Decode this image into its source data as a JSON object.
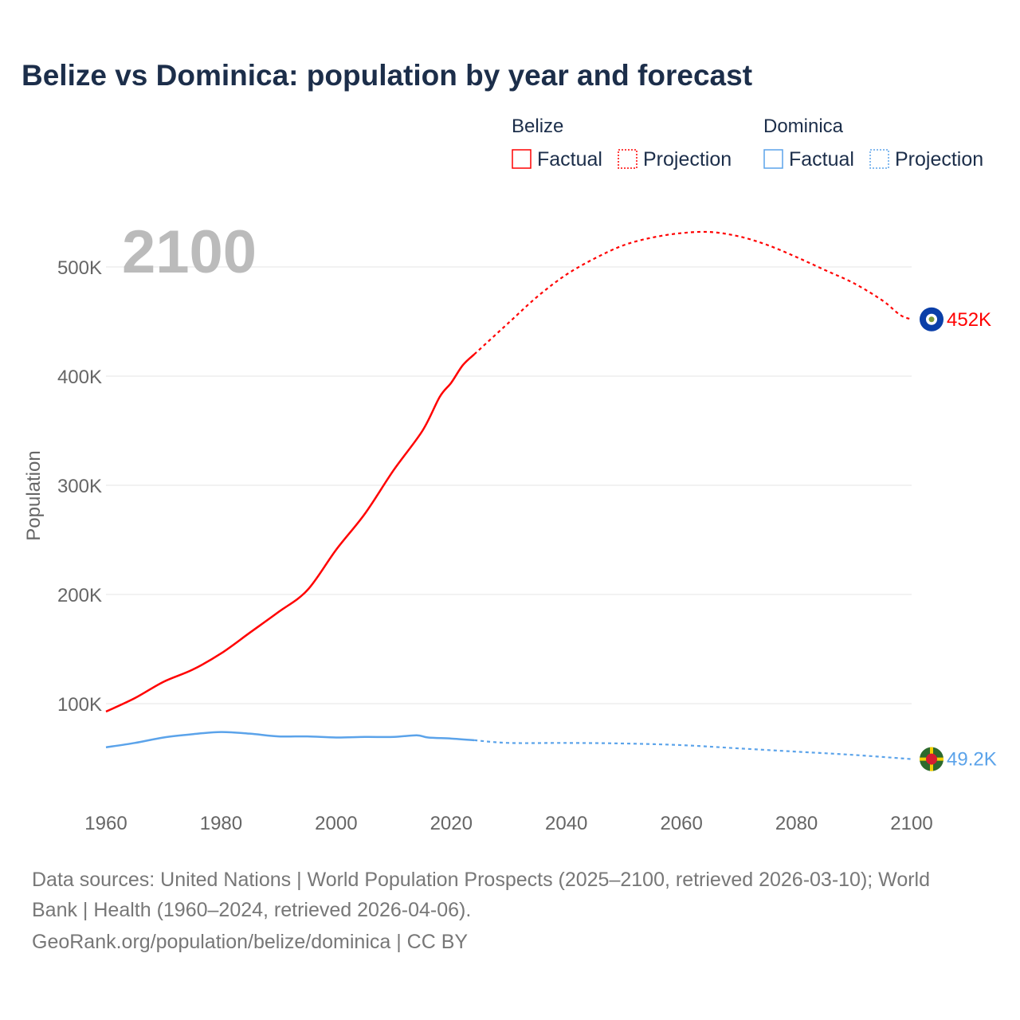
{
  "title": "Belize vs Dominica: population by year and forecast",
  "year_label": "2100",
  "footer": {
    "line1": "Data sources: United Nations | World Population Prospects (2025–2100, retrieved 2026-03-10); World",
    "line2": "Bank | Health (1960–2024, retrieved 2026-04-06).",
    "line3": "GeoRank.org/population/belize/dominica | CC BY"
  },
  "legend": {
    "groups": [
      {
        "name": "Belize",
        "color": "#ff0000",
        "factual": "Factual",
        "projection": "Projection"
      },
      {
        "name": "Dominica",
        "color": "#5ba3ea",
        "factual": "Factual",
        "projection": "Projection"
      }
    ]
  },
  "chart_data": {
    "type": "line",
    "title": "Belize vs Dominica: population by year and forecast",
    "ylabel": "Population",
    "xlabel": "",
    "xlim": [
      1960,
      2100
    ],
    "ylim": [
      0,
      550000
    ],
    "xticks": [
      1960,
      1980,
      2000,
      2020,
      2040,
      2060,
      2080,
      2100
    ],
    "xtick_labels": [
      "1960",
      "1980",
      "2000",
      "2020",
      "2040",
      "2060",
      "2080",
      "2100"
    ],
    "yticks": [
      100000,
      200000,
      300000,
      400000,
      500000
    ],
    "ytick_labels": [
      "100K",
      "200K",
      "300K",
      "400K",
      "500K"
    ],
    "grid": true,
    "series": [
      {
        "name": "Belize",
        "color": "#ff0000",
        "end_label": "452K",
        "factual": [
          [
            1960,
            92700
          ],
          [
            1965,
            105000
          ],
          [
            1970,
            120000
          ],
          [
            1975,
            131000
          ],
          [
            1980,
            146000
          ],
          [
            1985,
            165000
          ],
          [
            1990,
            184000
          ],
          [
            1995,
            204000
          ],
          [
            2000,
            241000
          ],
          [
            2005,
            274000
          ],
          [
            2010,
            314000
          ],
          [
            2015,
            350000
          ],
          [
            2018,
            381000
          ],
          [
            2020,
            394000
          ],
          [
            2022,
            410000
          ],
          [
            2024,
            420000
          ]
        ],
        "projection": [
          [
            2024,
            420000
          ],
          [
            2030,
            449000
          ],
          [
            2035,
            473000
          ],
          [
            2040,
            493000
          ],
          [
            2045,
            508000
          ],
          [
            2050,
            520000
          ],
          [
            2055,
            527000
          ],
          [
            2060,
            531000
          ],
          [
            2065,
            532000
          ],
          [
            2070,
            528000
          ],
          [
            2075,
            520000
          ],
          [
            2080,
            509000
          ],
          [
            2085,
            497000
          ],
          [
            2090,
            485000
          ],
          [
            2095,
            469000
          ],
          [
            2098,
            456000
          ],
          [
            2100,
            452000
          ]
        ]
      },
      {
        "name": "Dominica",
        "color": "#5ba3ea",
        "end_label": "49.2K",
        "factual": [
          [
            1960,
            60000
          ],
          [
            1965,
            64000
          ],
          [
            1970,
            69000
          ],
          [
            1975,
            72000
          ],
          [
            1980,
            74000
          ],
          [
            1985,
            72500
          ],
          [
            1990,
            70000
          ],
          [
            1995,
            70000
          ],
          [
            2000,
            69000
          ],
          [
            2005,
            69500
          ],
          [
            2010,
            69500
          ],
          [
            2014,
            71000
          ],
          [
            2016,
            69000
          ],
          [
            2020,
            68000
          ],
          [
            2024,
            66500
          ]
        ],
        "projection": [
          [
            2024,
            66500
          ],
          [
            2030,
            64000
          ],
          [
            2040,
            64000
          ],
          [
            2050,
            63500
          ],
          [
            2060,
            62000
          ],
          [
            2070,
            59000
          ],
          [
            2080,
            56000
          ],
          [
            2090,
            53000
          ],
          [
            2100,
            49200
          ]
        ]
      }
    ]
  }
}
